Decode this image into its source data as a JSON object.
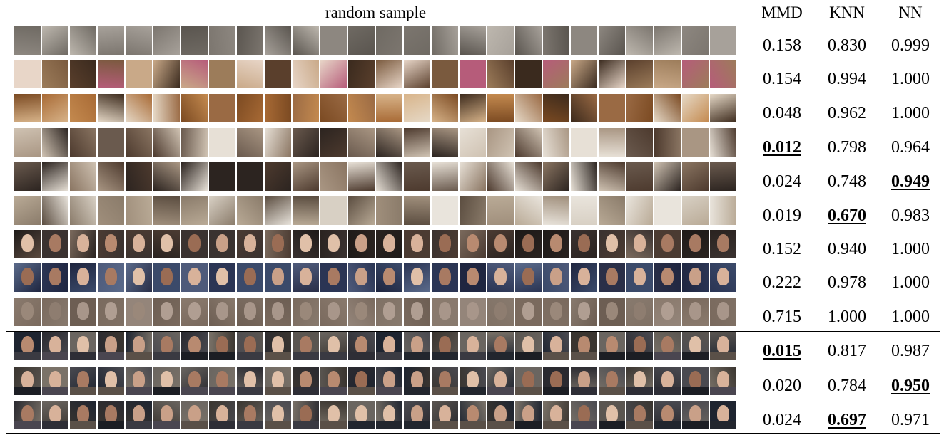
{
  "header": {
    "sample": "random sample",
    "mmd": "MMD",
    "knn": "KNN",
    "nn": "NN"
  },
  "palettes": {
    "lsun_gray": [
      "#6f6a63",
      "#8d8780",
      "#a7a19a",
      "#5a554f",
      "#bdb7ae",
      "#7c766f"
    ],
    "lsun_glitch": [
      "#3a2a1e",
      "#7a5a3e",
      "#c9a988",
      "#b65c7a",
      "#e8d6c8",
      "#5a3f2c",
      "#9c7c5a"
    ],
    "lsun_warm": [
      "#7b4a22",
      "#a86a35",
      "#d8b48a",
      "#3c2a1c",
      "#e6d9c7",
      "#9a6a44",
      "#c48a4f"
    ],
    "lsun_bed": [
      "#4d3a2e",
      "#8a7562",
      "#cfc2b2",
      "#2c2420",
      "#e7e0d6",
      "#6a5a4e",
      "#a99683"
    ],
    "lsun_light": [
      "#b9aa96",
      "#8a7b6a",
      "#d8d0c4",
      "#5b4d40",
      "#e9e4dc",
      "#a08f7c"
    ],
    "face_blob": [
      "#2a2320",
      "#4b3b32",
      "#7b6a5d",
      "#1e1a18",
      "#5a4a40",
      "#3a3230"
    ],
    "face_blue": [
      "#2b3554",
      "#3b4a6a",
      "#1f2640",
      "#4e5a7a",
      "#2a2f48",
      "#5a6a8a"
    ],
    "face_murky": [
      "#7a6a5e",
      "#8a7a6d",
      "#6d5e53",
      "#94857a",
      "#7f7064",
      "#887a6e"
    ],
    "face_real": [
      "#3a3530",
      "#5a5550",
      "#2a2a30",
      "#6a6560",
      "#1e2430",
      "#4a4a50",
      "#7a7268"
    ],
    "skin": [
      "#c9a088",
      "#b88a70",
      "#d8b29a",
      "#a87a62",
      "#e0c0a8",
      "#9a6c54"
    ],
    "skin_murky": [
      "#9a887a",
      "#a8968a",
      "#8e7d70",
      "#b09e92"
    ],
    "body": [
      "#22262e",
      "#3a3a42",
      "#1c1e24",
      "#4a4650",
      "#2e2e36",
      "#5a5048"
    ]
  },
  "rows": [
    {
      "style": "lsun_gray",
      "mmd": "0.158",
      "knn": "0.830",
      "nn": "0.999",
      "best": []
    },
    {
      "style": "lsun_glitch",
      "mmd": "0.154",
      "knn": "0.994",
      "nn": "1.000",
      "best": []
    },
    {
      "style": "lsun_warm",
      "mmd": "0.048",
      "knn": "0.962",
      "nn": "1.000",
      "best": []
    },
    {
      "style": "lsun_bed",
      "mmd": "0.012",
      "knn": "0.798",
      "nn": "0.964",
      "best": [
        "mmd"
      ]
    },
    {
      "style": "lsun_bed",
      "mmd": "0.024",
      "knn": "0.748",
      "nn": "0.949",
      "best": [
        "nn"
      ]
    },
    {
      "style": "lsun_light",
      "mmd": "0.019",
      "knn": "0.670",
      "nn": "0.983",
      "best": [
        "knn"
      ]
    },
    {
      "style": "face_blob",
      "mmd": "0.152",
      "knn": "0.940",
      "nn": "1.000",
      "best": []
    },
    {
      "style": "face_blue",
      "mmd": "0.222",
      "knn": "0.978",
      "nn": "1.000",
      "best": []
    },
    {
      "style": "face_murky",
      "mmd": "0.715",
      "knn": "1.000",
      "nn": "1.000",
      "best": []
    },
    {
      "style": "face_real",
      "mmd": "0.015",
      "knn": "0.817",
      "nn": "0.987",
      "best": [
        "mmd"
      ]
    },
    {
      "style": "face_real",
      "mmd": "0.020",
      "knn": "0.784",
      "nn": "0.950",
      "best": [
        "nn"
      ]
    },
    {
      "style": "face_real",
      "mmd": "0.024",
      "knn": "0.697",
      "nn": "0.971",
      "best": [
        "knn"
      ]
    }
  ]
}
